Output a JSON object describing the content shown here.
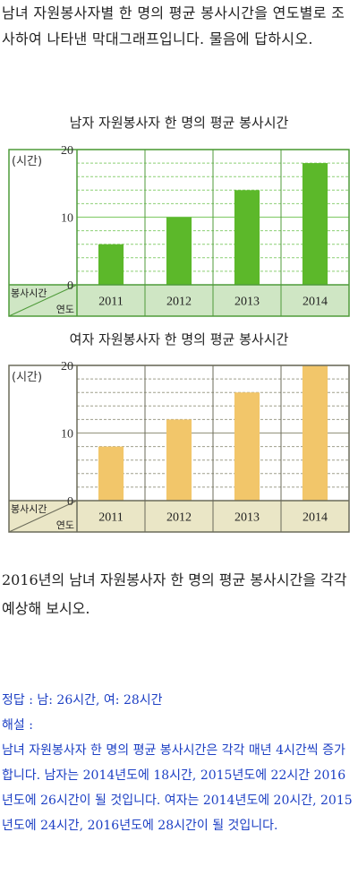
{
  "intro": "남녀 자원봉사자별 한 명의 평균 봉사시간을 연도별로 조사하여 나타낸 막대그래프입니다. 물음에 답하시오.",
  "question": "2016년의 남녀 자원봉사자 한 명의 평균 봉사시간을 각각 예상해 보시오.",
  "answer": {
    "line": "정답 : 남: 26시간, 여: 28시간",
    "explain_label": "해설 :",
    "explain": "남녀 자원봉사자 한 명의 평균 봉사시간은 각각 매년 4시간씩 증가합니다. 남자는 2014년도에 18시간, 2015년도에 22시간 2016년도에 26시간이 될 것입니다. 여자는 2014년도에 20시간, 2015년도에 24시간, 2016년도에 28시간이 될 것입니다."
  },
  "chart_data": [
    {
      "type": "bar",
      "title": "남자 자원봉사자 한 명의 평균 봉사시간",
      "ylabel": "(시간)",
      "row_label_top": "봉사시간",
      "row_label_bottom": "연도",
      "categories": [
        "2011",
        "2012",
        "2013",
        "2014"
      ],
      "values": [
        6,
        10,
        14,
        18
      ],
      "ylim": [
        0,
        20
      ],
      "yticks": [
        0,
        10,
        20
      ],
      "grid": "dashed minor every 2, solid major every 10",
      "colors": {
        "bar": "#5cb82a",
        "frame": "#4f9b3a",
        "grid": "#8ccf74",
        "row_bg": "#cfe6c4"
      }
    },
    {
      "type": "bar",
      "title": "여자 자원봉사자 한 명의 평균 봉사시간",
      "ylabel": "(시간)",
      "row_label_top": "봉사시간",
      "row_label_bottom": "연도",
      "categories": [
        "2011",
        "2012",
        "2013",
        "2014"
      ],
      "values": [
        8,
        12,
        16,
        20
      ],
      "ylim": [
        0,
        20
      ],
      "yticks": [
        0,
        10,
        20
      ],
      "grid": "dashed minor every 2, solid major every 10",
      "colors": {
        "bar": "#f2c66a",
        "frame": "#6b6b5a",
        "grid": "#9f9f8c",
        "row_bg": "#eae6c6"
      }
    }
  ]
}
